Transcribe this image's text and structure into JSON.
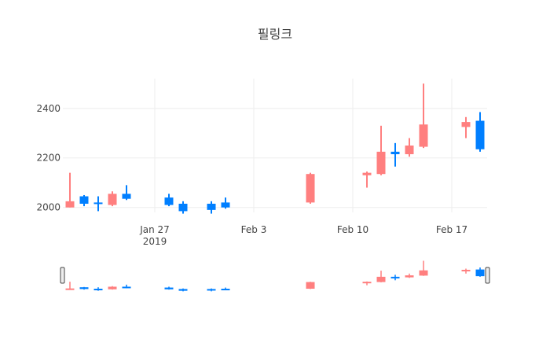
{
  "chart_data": {
    "type": "candlestick",
    "title": "필링크",
    "xlabel": "",
    "ylabel": "",
    "colors": {
      "increasing": "#ff7f7f",
      "decreasing": "#007fff"
    },
    "x_ticks": [
      {
        "date": "2019-01-27",
        "label": "Jan 27",
        "sublabel": "2019"
      },
      {
        "date": "2019-02-03",
        "label": "Feb 3",
        "sublabel": ""
      },
      {
        "date": "2019-02-10",
        "label": "Feb 10",
        "sublabel": ""
      },
      {
        "date": "2019-02-17",
        "label": "Feb 17",
        "sublabel": ""
      }
    ],
    "y_ticks": [
      {
        "value": 2000,
        "label": "2000"
      },
      {
        "value": 2200,
        "label": "2200"
      },
      {
        "value": 2400,
        "label": "2400"
      }
    ],
    "x_range": [
      "2019-01-20T12:00",
      "2019-02-19T12:00"
    ],
    "y_range": [
      1980,
      2520
    ],
    "grid": true,
    "range_slider": true,
    "candles": [
      {
        "date": "2019-01-21",
        "open": 2000,
        "high": 2140,
        "low": 2000,
        "close": 2025
      },
      {
        "date": "2019-01-22",
        "open": 2045,
        "high": 2050,
        "low": 2005,
        "close": 2015
      },
      {
        "date": "2019-01-23",
        "open": 2020,
        "high": 2045,
        "low": 1985,
        "close": 2015
      },
      {
        "date": "2019-01-24",
        "open": 2010,
        "high": 2065,
        "low": 2005,
        "close": 2055
      },
      {
        "date": "2019-01-25",
        "open": 2055,
        "high": 2090,
        "low": 2030,
        "close": 2035
      },
      {
        "date": "2019-01-28",
        "open": 2040,
        "high": 2055,
        "low": 2005,
        "close": 2010
      },
      {
        "date": "2019-01-29",
        "open": 2015,
        "high": 2025,
        "low": 1975,
        "close": 1985
      },
      {
        "date": "2019-01-31",
        "open": 2015,
        "high": 2025,
        "low": 1975,
        "close": 1990
      },
      {
        "date": "2019-02-01",
        "open": 2020,
        "high": 2040,
        "low": 1995,
        "close": 2000
      },
      {
        "date": "2019-02-07",
        "open": 2020,
        "high": 2140,
        "low": 2015,
        "close": 2135
      },
      {
        "date": "2019-02-11",
        "open": 2130,
        "high": 2145,
        "low": 2080,
        "close": 2140
      },
      {
        "date": "2019-02-12",
        "open": 2135,
        "high": 2330,
        "low": 2130,
        "close": 2225
      },
      {
        "date": "2019-02-13",
        "open": 2225,
        "high": 2260,
        "low": 2165,
        "close": 2215
      },
      {
        "date": "2019-02-14",
        "open": 2215,
        "high": 2280,
        "low": 2205,
        "close": 2250
      },
      {
        "date": "2019-02-15",
        "open": 2245,
        "high": 2500,
        "low": 2240,
        "close": 2335
      },
      {
        "date": "2019-02-18",
        "open": 2325,
        "high": 2365,
        "low": 2280,
        "close": 2345
      },
      {
        "date": "2019-02-19",
        "open": 2350,
        "high": 2385,
        "low": 2225,
        "close": 2235
      }
    ]
  }
}
